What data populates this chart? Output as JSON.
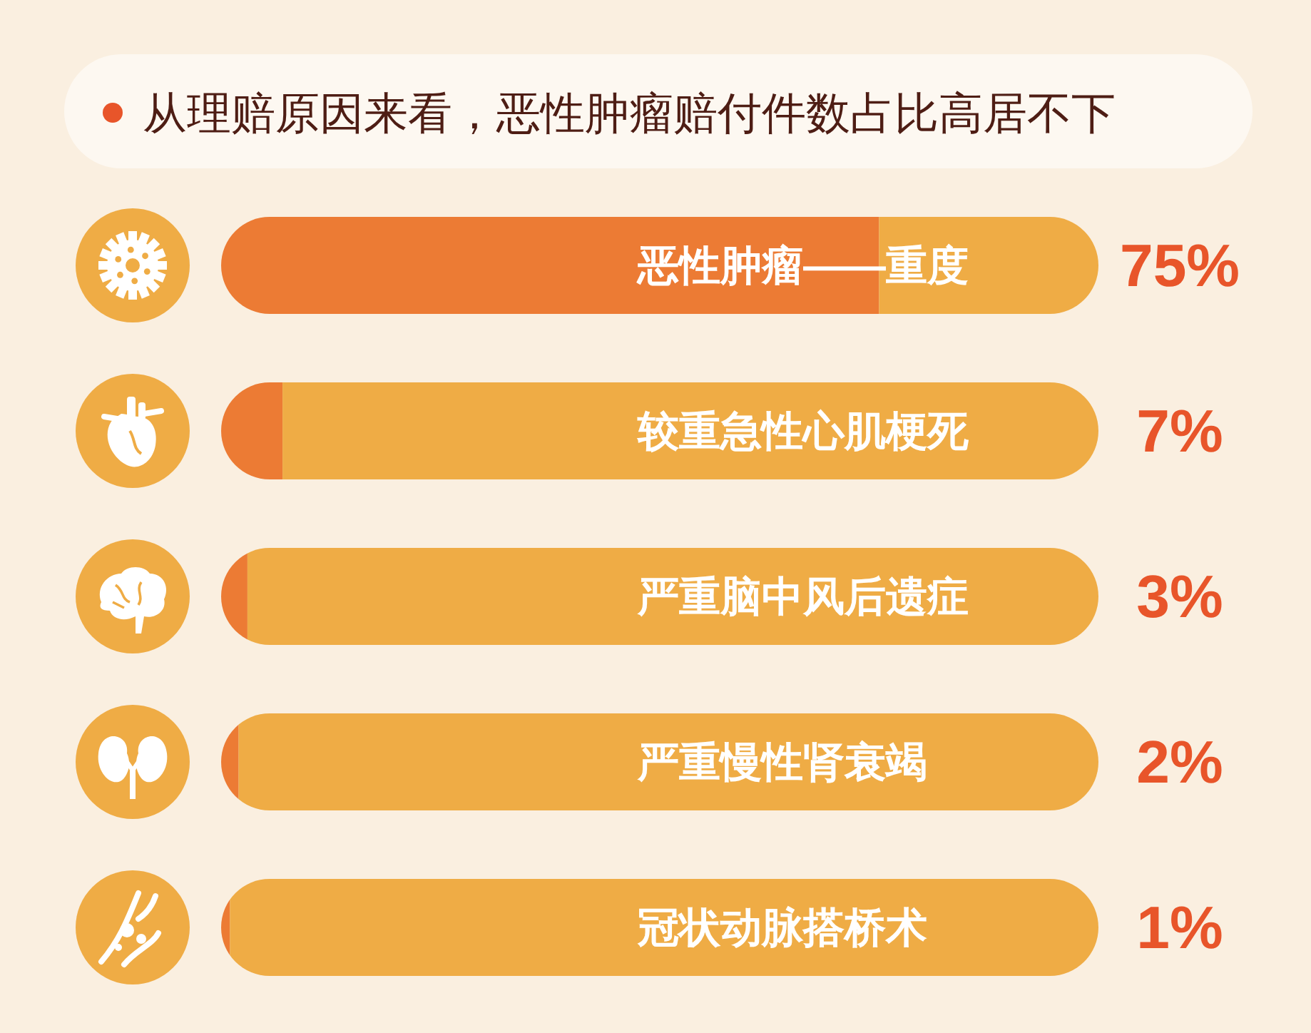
{
  "chart_data": {
    "type": "bar",
    "orientation": "horizontal",
    "stacked": true,
    "title": "从理赔原因来看，恶性肿瘤赔付件数占比高居不下",
    "categories": [
      "恶性肿瘤——重度",
      "较重急性心肌梗死",
      "严重脑中风后遗症",
      "严重慢性肾衰竭",
      "冠状动脉搭桥术"
    ],
    "series": [
      {
        "color": "#ec7b34",
        "values": [
          75,
          7,
          3,
          2,
          1
        ],
        "value_labels": [
          "75%",
          "7%",
          "3%",
          "2%",
          "1%"
        ]
      },
      {
        "color": "#efac45",
        "values": [
          25,
          93,
          97,
          98,
          99
        ]
      }
    ],
    "xlim": [
      0,
      100
    ],
    "tick_labels": "y"
  }
}
